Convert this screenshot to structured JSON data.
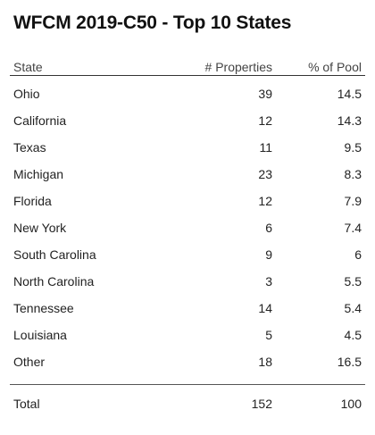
{
  "title": "WFCM 2019-C50 - Top 10 States",
  "table": {
    "columns": {
      "state": "State",
      "properties": "# Properties",
      "pool": "% of Pool"
    },
    "rows": [
      {
        "state": "Ohio",
        "properties": "39",
        "pool": "14.5"
      },
      {
        "state": "California",
        "properties": "12",
        "pool": "14.3"
      },
      {
        "state": "Texas",
        "properties": "11",
        "pool": "9.5"
      },
      {
        "state": "Michigan",
        "properties": "23",
        "pool": "8.3"
      },
      {
        "state": "Florida",
        "properties": "12",
        "pool": "7.9"
      },
      {
        "state": "New York",
        "properties": "6",
        "pool": "7.4"
      },
      {
        "state": "South Carolina",
        "properties": "9",
        "pool": "6"
      },
      {
        "state": "North Carolina",
        "properties": "3",
        "pool": "5.5"
      },
      {
        "state": "Tennessee",
        "properties": "14",
        "pool": "5.4"
      },
      {
        "state": "Louisiana",
        "properties": "5",
        "pool": "4.5"
      },
      {
        "state": "Other",
        "properties": "18",
        "pool": "16.5"
      }
    ],
    "total": {
      "label": "Total",
      "properties": "152",
      "pool": "100"
    }
  }
}
